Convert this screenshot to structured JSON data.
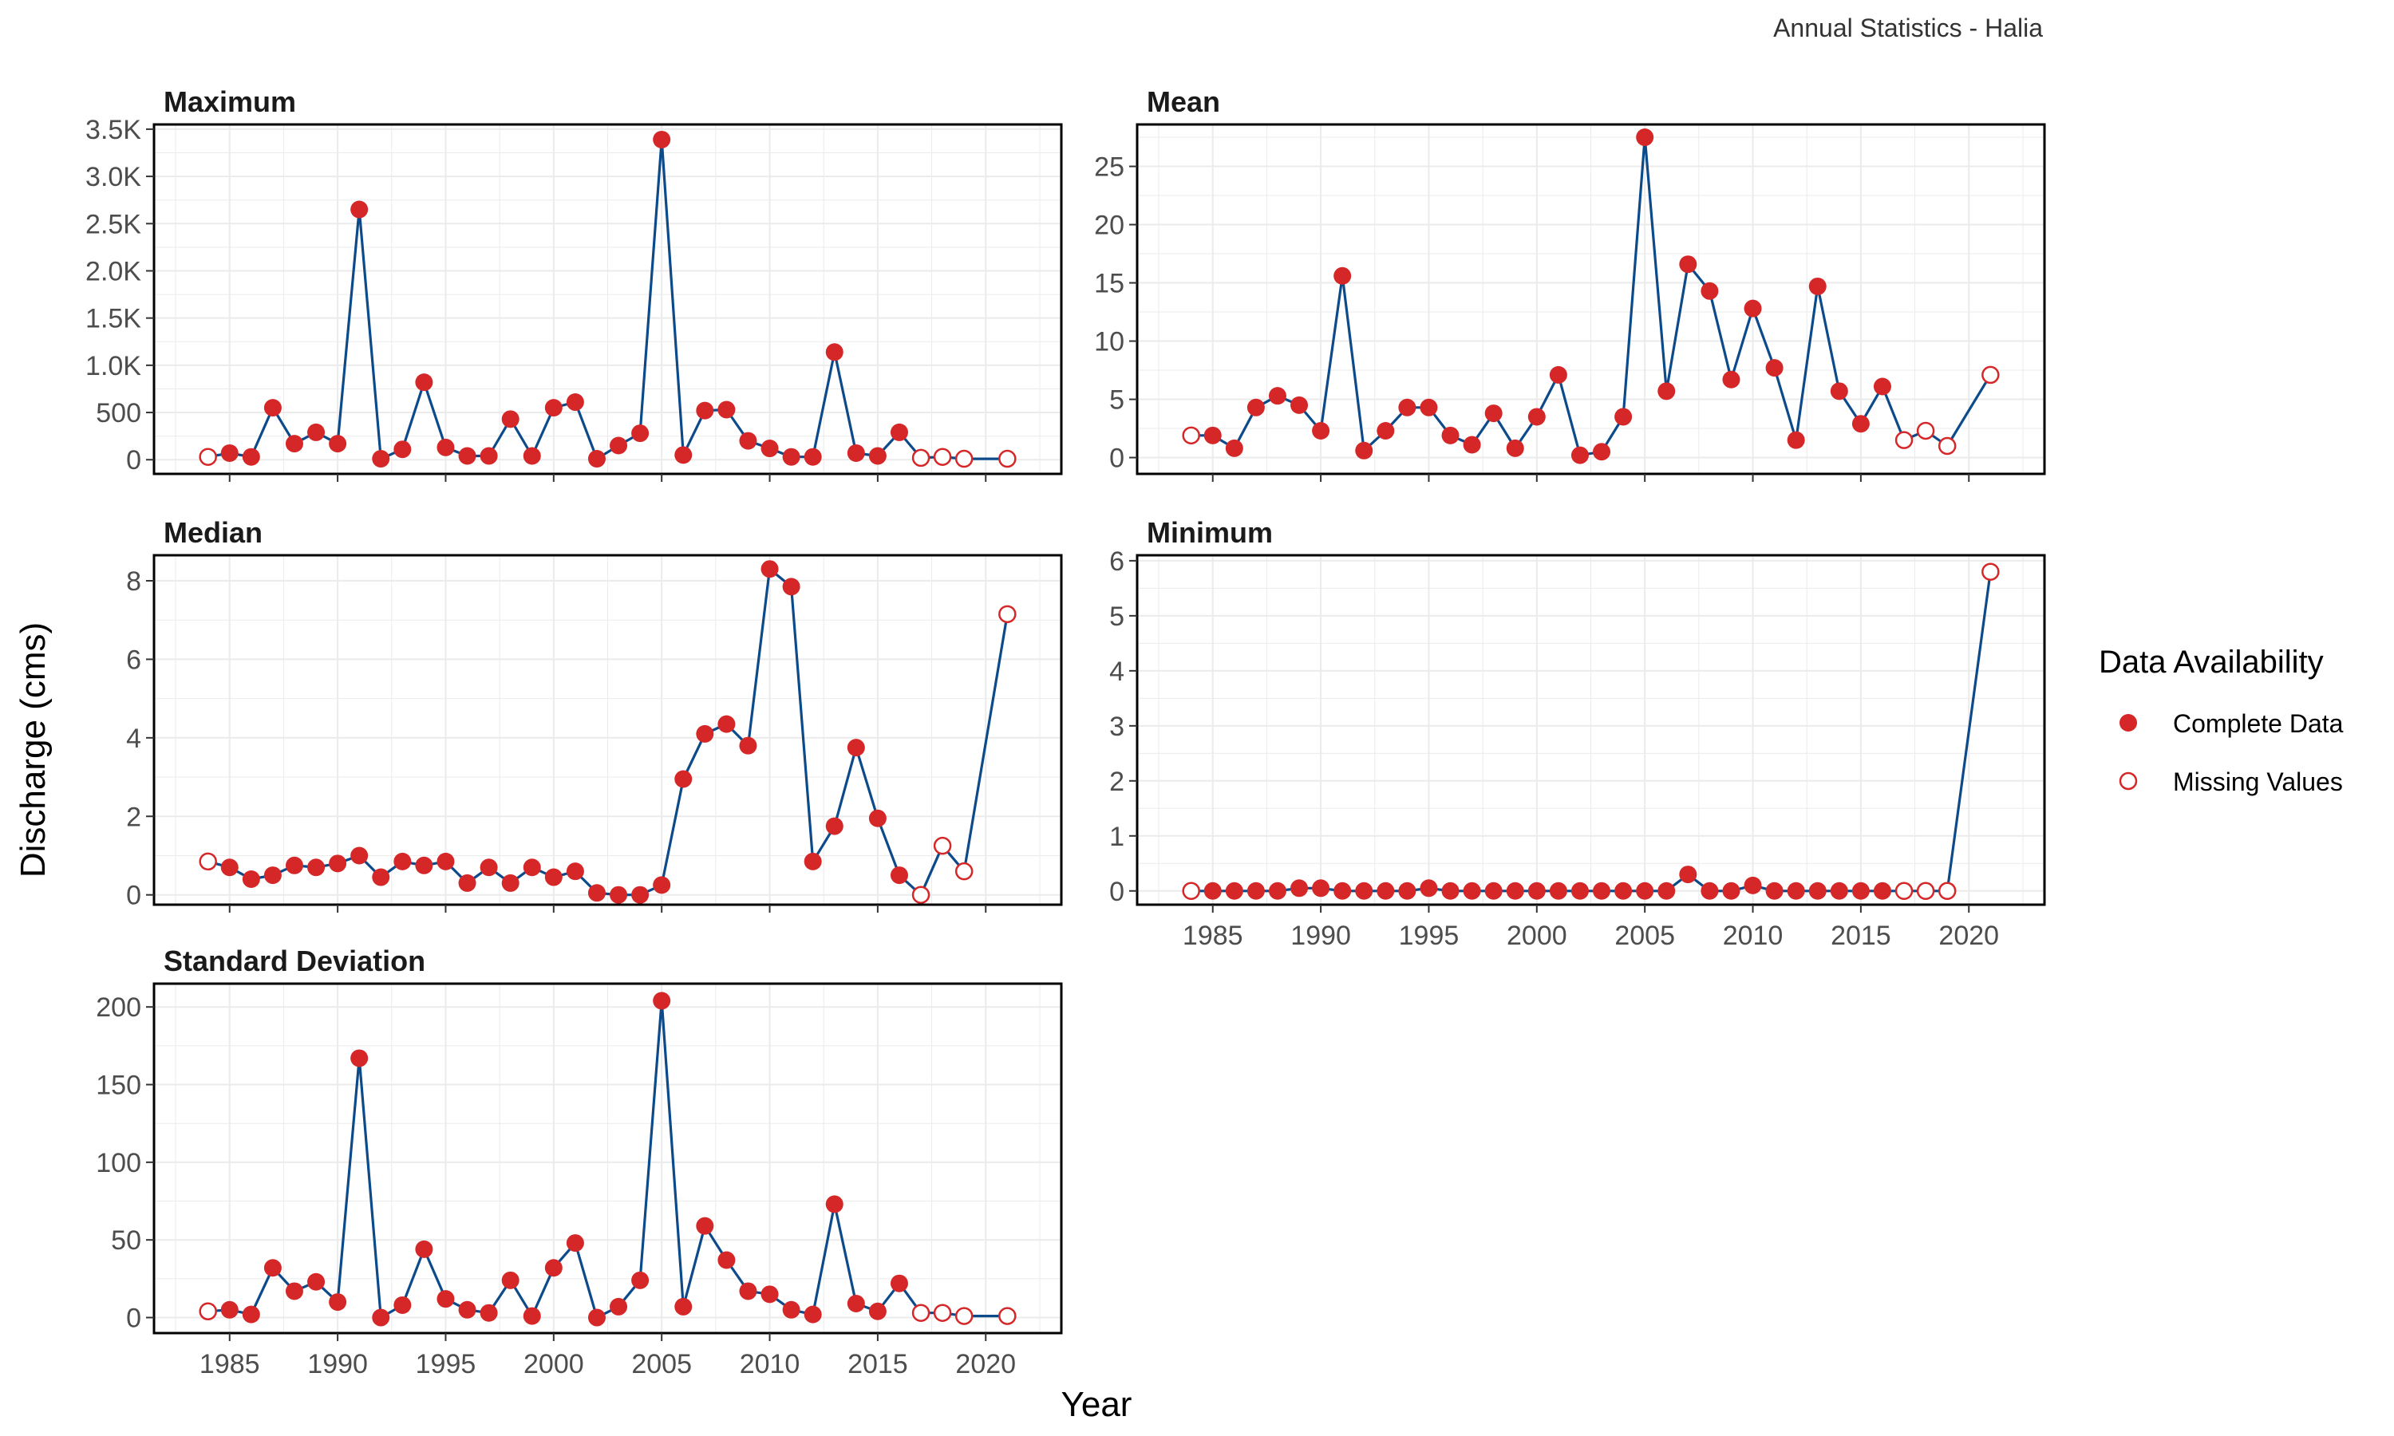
{
  "caption": "Annual Statistics - Halia",
  "ylabel": "Discharge (cms)",
  "xlabel": "Year",
  "legend": {
    "title": "Data Availability",
    "entries": [
      {
        "label": "Complete Data",
        "style": "filled"
      },
      {
        "label": "Missing Values",
        "style": "hollow"
      }
    ],
    "placement": "right"
  },
  "colors": {
    "line": "#0d4a8a",
    "point": "#d62728",
    "grid": "#ebebeb",
    "panel_border": "#000000"
  },
  "chart_data": [
    {
      "type": "line",
      "title": "Maximum",
      "xlim": [
        1981.5,
        2023.5
      ],
      "ylim": [
        -150,
        3550
      ],
      "yticks": [
        0,
        500,
        1000,
        1500,
        2000,
        2500,
        3000,
        3500
      ],
      "ytick_labels": [
        "0",
        "500",
        "1.0K",
        "1.5K",
        "2.0K",
        "2.5K",
        "3.0K",
        "3.5K"
      ],
      "xticks": [],
      "x": [
        1984,
        1985,
        1986,
        1987,
        1988,
        1989,
        1990,
        1991,
        1992,
        1993,
        1994,
        1995,
        1996,
        1997,
        1998,
        1999,
        2000,
        2001,
        2002,
        2003,
        2004,
        2005,
        2006,
        2007,
        2008,
        2009,
        2010,
        2011,
        2012,
        2013,
        2014,
        2015,
        2016,
        2017,
        2018,
        2019,
        2021
      ],
      "y": [
        30,
        70,
        30,
        550,
        170,
        290,
        170,
        2650,
        10,
        110,
        820,
        130,
        40,
        40,
        430,
        40,
        550,
        610,
        10,
        150,
        280,
        3390,
        50,
        520,
        530,
        200,
        120,
        30,
        30,
        1140,
        70,
        40,
        290,
        20,
        30,
        10,
        10
      ],
      "missing": [
        1984,
        2017,
        2018,
        2019,
        2021
      ]
    },
    {
      "type": "line",
      "title": "Mean",
      "xlim": [
        1981.5,
        2023.5
      ],
      "ylim": [
        -1.4,
        28.6
      ],
      "yticks": [
        0,
        5,
        10,
        15,
        20,
        25
      ],
      "ytick_labels": [
        "0",
        "5",
        "10",
        "15",
        "20",
        "25"
      ],
      "xticks": [],
      "x": [
        1984,
        1985,
        1986,
        1987,
        1988,
        1989,
        1990,
        1991,
        1992,
        1993,
        1994,
        1995,
        1996,
        1997,
        1998,
        1999,
        2000,
        2001,
        2002,
        2003,
        2004,
        2005,
        2006,
        2007,
        2008,
        2009,
        2010,
        2011,
        2012,
        2013,
        2014,
        2015,
        2016,
        2017,
        2018,
        2019,
        2021
      ],
      "y": [
        1.9,
        1.9,
        0.8,
        4.3,
        5.3,
        4.5,
        2.3,
        15.6,
        0.6,
        2.3,
        4.3,
        4.3,
        1.9,
        1.1,
        3.8,
        0.8,
        3.5,
        7.1,
        0.2,
        0.5,
        3.5,
        27.5,
        5.7,
        16.6,
        14.3,
        6.7,
        12.8,
        7.7,
        1.5,
        14.7,
        5.7,
        2.9,
        6.1,
        1.5,
        2.3,
        1.0,
        7.1
      ],
      "missing": [
        1984,
        2017,
        2018,
        2019,
        2021
      ]
    },
    {
      "type": "line",
      "title": "Median",
      "xlim": [
        1981.5,
        2023.5
      ],
      "ylim": [
        -0.25,
        8.65
      ],
      "yticks": [
        0,
        2,
        4,
        6,
        8
      ],
      "ytick_labels": [
        "0",
        "2",
        "4",
        "6",
        "8"
      ],
      "xticks": [],
      "x": [
        1984,
        1985,
        1986,
        1987,
        1988,
        1989,
        1990,
        1991,
        1992,
        1993,
        1994,
        1995,
        1996,
        1997,
        1998,
        1999,
        2000,
        2001,
        2002,
        2003,
        2004,
        2005,
        2006,
        2007,
        2008,
        2009,
        2010,
        2011,
        2012,
        2013,
        2014,
        2015,
        2016,
        2017,
        2018,
        2019,
        2021
      ],
      "y": [
        0.85,
        0.7,
        0.4,
        0.5,
        0.75,
        0.7,
        0.8,
        1.0,
        0.45,
        0.85,
        0.75,
        0.85,
        0.3,
        0.7,
        0.3,
        0.7,
        0.45,
        0.6,
        0.05,
        0.0,
        0.0,
        0.25,
        2.95,
        4.1,
        4.35,
        3.8,
        8.3,
        7.85,
        0.85,
        1.75,
        3.75,
        1.95,
        0.5,
        0.0,
        1.25,
        0.6,
        7.15
      ],
      "missing": [
        1984,
        2017,
        2018,
        2019,
        2021
      ]
    },
    {
      "type": "line",
      "title": "Minimum",
      "xlim": [
        1981.5,
        2023.5
      ],
      "ylim": [
        -0.25,
        6.1
      ],
      "yticks": [
        0,
        1,
        2,
        3,
        4,
        5,
        6
      ],
      "ytick_labels": [
        "0",
        "1",
        "2",
        "3",
        "4",
        "5",
        "6"
      ],
      "xticks": [
        1985,
        1990,
        1995,
        2000,
        2005,
        2010,
        2015,
        2020
      ],
      "x": [
        1984,
        1985,
        1986,
        1987,
        1988,
        1989,
        1990,
        1991,
        1992,
        1993,
        1994,
        1995,
        1996,
        1997,
        1998,
        1999,
        2000,
        2001,
        2002,
        2003,
        2004,
        2005,
        2006,
        2007,
        2008,
        2009,
        2010,
        2011,
        2012,
        2013,
        2014,
        2015,
        2016,
        2017,
        2018,
        2019,
        2021
      ],
      "y": [
        0,
        0,
        0,
        0,
        0,
        0.05,
        0.05,
        0,
        0,
        0,
        0,
        0.05,
        0,
        0,
        0,
        0,
        0,
        0,
        0,
        0,
        0,
        0,
        0,
        0.3,
        0,
        0,
        0.1,
        0,
        0,
        0,
        0,
        0,
        0,
        0,
        0,
        0,
        5.8
      ],
      "missing": [
        1984,
        2017,
        2018,
        2019,
        2021
      ]
    },
    {
      "type": "line",
      "title": "Standard Deviation",
      "xlim": [
        1981.5,
        2023.5
      ],
      "ylim": [
        -10,
        215
      ],
      "yticks": [
        0,
        50,
        100,
        150,
        200
      ],
      "ytick_labels": [
        "0",
        "50",
        "100",
        "150",
        "200"
      ],
      "xticks": [
        1985,
        1990,
        1995,
        2000,
        2005,
        2010,
        2015,
        2020
      ],
      "x": [
        1984,
        1985,
        1986,
        1987,
        1988,
        1989,
        1990,
        1991,
        1992,
        1993,
        1994,
        1995,
        1996,
        1997,
        1998,
        1999,
        2000,
        2001,
        2002,
        2003,
        2004,
        2005,
        2006,
        2007,
        2008,
        2009,
        2010,
        2011,
        2012,
        2013,
        2014,
        2015,
        2016,
        2017,
        2018,
        2019,
        2021
      ],
      "y": [
        4,
        5,
        2,
        32,
        17,
        23,
        10,
        167,
        0,
        8,
        44,
        12,
        5,
        3,
        24,
        1,
        32,
        48,
        0,
        7,
        24,
        204,
        7,
        59,
        37,
        17,
        15,
        5,
        2,
        73,
        9,
        4,
        22,
        3,
        3,
        1,
        1
      ],
      "missing": [
        1984,
        2017,
        2018,
        2019,
        2021
      ]
    }
  ]
}
